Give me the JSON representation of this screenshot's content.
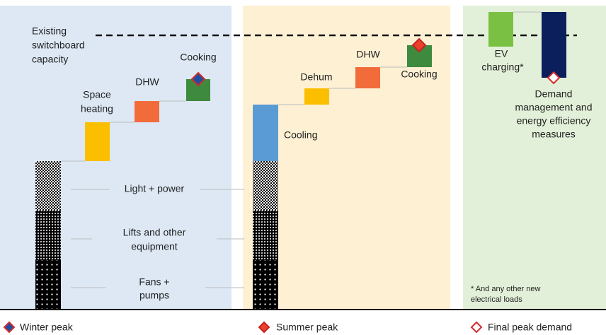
{
  "capacity_label": [
    "Existing",
    "switchboard",
    "capacity"
  ],
  "winter": {
    "space_heating": [
      "Space",
      "heating"
    ],
    "dhw": "DHW",
    "cooking": "Cooking"
  },
  "base": {
    "light_power": "Light + power",
    "lifts": [
      "Lifts and other",
      "equipment"
    ],
    "fans": [
      "Fans +",
      "pumps"
    ]
  },
  "summer": {
    "cooling": "Cooling",
    "dehum": "Dehum",
    "dhw": "DHW",
    "cooking": "Cooking"
  },
  "final": {
    "ev": [
      "EV",
      "charging*"
    ],
    "demand": [
      "Demand",
      "management and",
      "energy efficiency",
      "measures"
    ]
  },
  "footnote": [
    "* And any other new",
    "electrical loads"
  ],
  "legend": [
    "Winter peak",
    "Summer peak",
    "Final peak demand"
  ]
}
